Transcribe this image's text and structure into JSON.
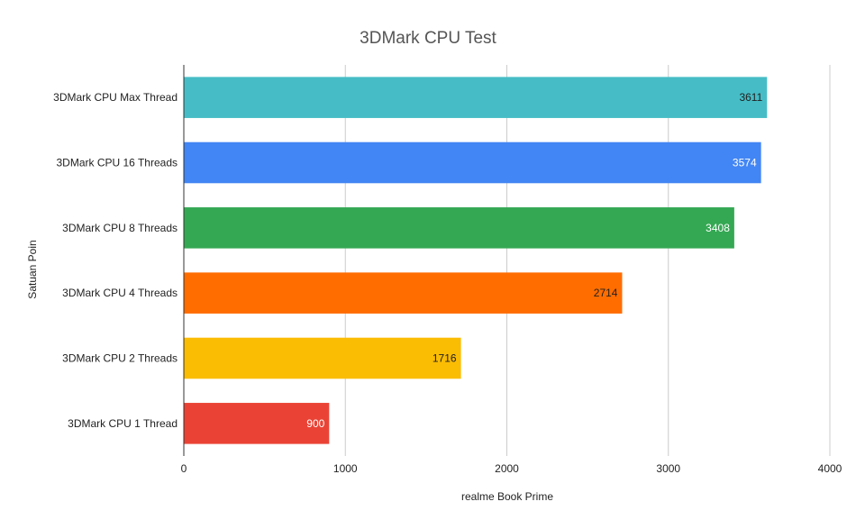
{
  "chart_data": {
    "type": "bar",
    "orientation": "horizontal",
    "title": "3DMark CPU Test",
    "xlabel": "realme Book Prime",
    "ylabel": "Satuan Poin",
    "xlim": [
      0,
      4000
    ],
    "xticks": [
      0,
      1000,
      2000,
      3000,
      4000
    ],
    "grid": true,
    "legend": "none",
    "categories": [
      "3DMark CPU Max Thread",
      "3DMark CPU 16 Threads",
      "3DMark CPU 8 Threads",
      "3DMark CPU 4 Threads",
      "3DMark CPU 2 Threads",
      "3DMark CPU 1 Thread"
    ],
    "values": [
      3611,
      3574,
      3408,
      2714,
      1716,
      900
    ],
    "colors": [
      "#46bdc6",
      "#4285f4",
      "#34a853",
      "#ff6d01",
      "#fbbc04",
      "#ea4335"
    ],
    "label_colors": [
      "#222222",
      "#ffffff",
      "#ffffff",
      "#222222",
      "#222222",
      "#ffffff"
    ]
  }
}
